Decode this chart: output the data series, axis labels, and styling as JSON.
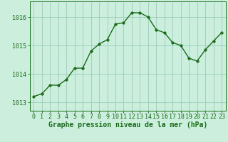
{
  "x": [
    0,
    1,
    2,
    3,
    4,
    5,
    6,
    7,
    8,
    9,
    10,
    11,
    12,
    13,
    14,
    15,
    16,
    17,
    18,
    19,
    20,
    21,
    22,
    23
  ],
  "y": [
    1013.2,
    1013.3,
    1013.6,
    1013.6,
    1013.8,
    1014.2,
    1014.2,
    1014.8,
    1015.05,
    1015.2,
    1015.75,
    1015.8,
    1016.15,
    1016.15,
    1016.0,
    1015.55,
    1015.45,
    1015.1,
    1015.0,
    1014.55,
    1014.45,
    1014.85,
    1015.15,
    1015.45
  ],
  "line_color": "#1a6b1a",
  "marker_color": "#1a6b1a",
  "bg_color": "#cceedd",
  "grid_color": "#99ccbb",
  "xlabel": "Graphe pression niveau de la mer (hPa)",
  "xlabel_color": "#1a6b1a",
  "tick_color": "#1a6b1a",
  "ylim": [
    1012.7,
    1016.55
  ],
  "yticks": [
    1013,
    1014,
    1015,
    1016
  ],
  "xlim": [
    -0.5,
    23.5
  ],
  "xticks": [
    0,
    1,
    2,
    3,
    4,
    5,
    6,
    7,
    8,
    9,
    10,
    11,
    12,
    13,
    14,
    15,
    16,
    17,
    18,
    19,
    20,
    21,
    22,
    23
  ],
  "spine_color": "#1a6b1a",
  "label_fontsize": 7.0,
  "tick_fontsize": 6.0,
  "marker_size": 2.5,
  "line_width": 1.0
}
